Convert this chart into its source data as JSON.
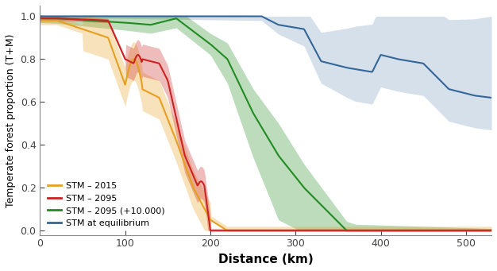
{
  "title": "",
  "xlabel": "Distance (km)",
  "ylabel": "Temperate forest proportion (T+M)",
  "xlim": [
    0,
    530
  ],
  "ylim": [
    -0.02,
    1.05
  ],
  "yticks": [
    0.0,
    0.2,
    0.4,
    0.6,
    0.8,
    1.0
  ],
  "xticks": [
    0,
    100,
    200,
    300,
    400,
    500
  ],
  "background_color": "#ffffff",
  "series": {
    "stm2015": {
      "color": "#E6A020",
      "fill_color": "#E6A020",
      "fill_alpha": 0.3,
      "label": "STM – 2015"
    },
    "stm2095": {
      "color": "#CC2222",
      "fill_color": "#CC2222",
      "fill_alpha": 0.3,
      "label": "STM – 2095"
    },
    "stm2095plus": {
      "color": "#228B22",
      "fill_color": "#228B22",
      "fill_alpha": 0.3,
      "label": "STM – 2095 (+10.000)"
    },
    "stm_eq": {
      "color": "#336699",
      "fill_color": "#336699",
      "fill_alpha": 0.2,
      "label": "STM at equilibrium"
    }
  }
}
